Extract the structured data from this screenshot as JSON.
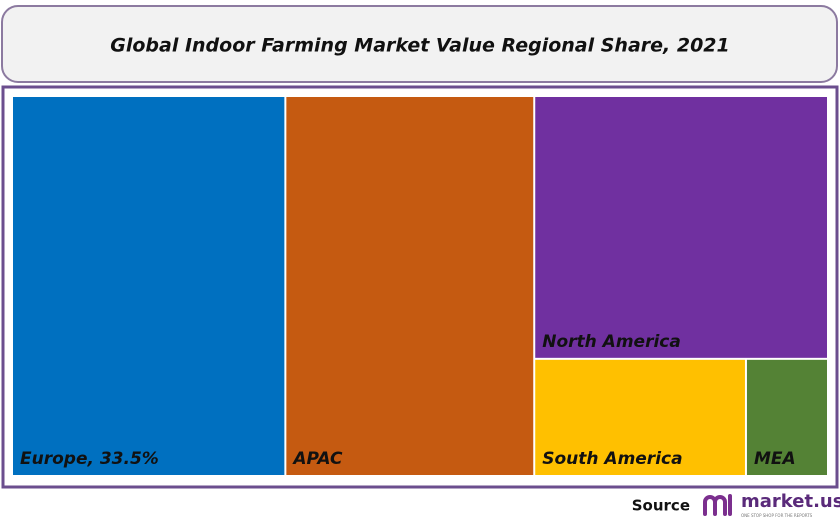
{
  "chart_data": {
    "type": "treemap",
    "title": "Global Indoor Farming Market Value Regional Share, 2021",
    "labels": [
      "Europe, 33.5%",
      "APAC",
      "North America",
      "South America",
      "MEA"
    ],
    "values": [
      33.5,
      30.5,
      24.9,
      8.0,
      3.1
    ],
    "colors": [
      "#0070c0",
      "#c55a11",
      "#7030a0",
      "#ffc000",
      "#548235"
    ]
  },
  "footer": {
    "source": "Source",
    "brand": "market.us",
    "tagline": "ONE STOP SHOP FOR THE REPORTS"
  }
}
